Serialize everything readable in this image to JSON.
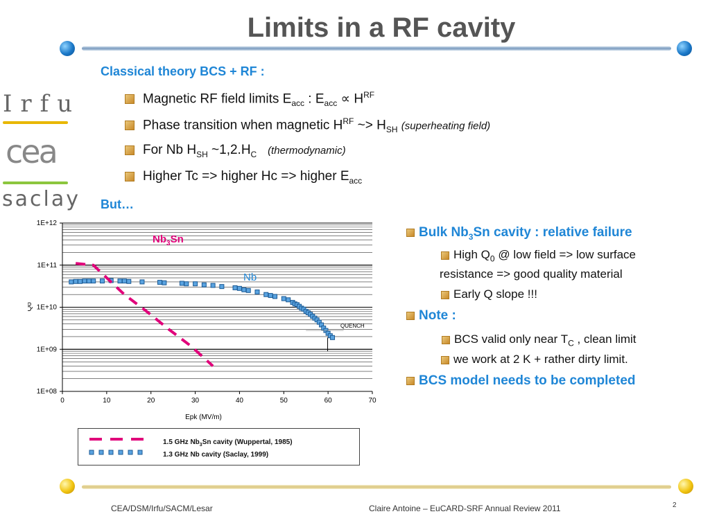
{
  "slide": {
    "title": "Limits in a RF cavity",
    "page_number": "2"
  },
  "logos": {
    "irfu": "Irfu",
    "cea": "cea",
    "saclay": "saclay"
  },
  "left_text": {
    "heading": "Classical theory BCS + RF :",
    "b1": {
      "a": "Magnetic RF field limits E",
      "a_sub": "acc",
      "b": " : E",
      "b_sub": "acc",
      "c": " ∝ H",
      "c_sup": "RF"
    },
    "b2": {
      "a": "Phase transition when magnetic H",
      "a_sup": "RF",
      "b": " ~> H",
      "b_sub": "SH",
      "note": "(superheating field)"
    },
    "b3": {
      "a": "For Nb H",
      "a_sub": "SH",
      "b": " ~1,2.H",
      "b_sub": "C",
      "note": "(thermodynamic)"
    },
    "b4": {
      "a": "Higher Tc => higher Hc => higher E",
      "a_sub": "acc"
    },
    "but": "But…"
  },
  "right_text": {
    "h1": {
      "a": "Bulk Nb",
      "a_sub": "3",
      "b": "Sn cavity : relative failure"
    },
    "s1a": {
      "a": "High Q",
      "a_sub": "0",
      "b": " @ low field => low surface"
    },
    "s1b": "resistance => good quality material",
    "s1c": "Early Q slope !!!",
    "h2": "Note :",
    "s2a": {
      "a": "BCS valid only near T",
      "a_sub": "C",
      "b": " , clean limit"
    },
    "s2b": "we work at 2 K + rather dirty limit.",
    "h3": "BCS model needs to be completed"
  },
  "footer": {
    "left": "CEA/DSM/Irfu/SACM/Lesar",
    "center": "Claire Antoine – EuCARD-SRF Annual Review 2011"
  },
  "colors": {
    "accent_blue": "#1f86d6",
    "nb3sn": "#e0007a",
    "nb_marker": "#5aa3e0"
  },
  "chart_data": {
    "type": "scatter",
    "xlabel": "Epk (MV/m)",
    "ylabel": "Qo",
    "xlim": [
      0,
      70
    ],
    "ylim_log10": [
      8,
      12
    ],
    "y_scale": "log",
    "x_ticks": [
      "0",
      "10",
      "20",
      "30",
      "40",
      "50",
      "60",
      "70"
    ],
    "y_ticks": [
      "1E+08",
      "1E+09",
      "1E+10",
      "1E+11",
      "1E+12"
    ],
    "annotations": {
      "nb3sn": {
        "a": "Nb",
        "a_sub": "3",
        "b": "Sn"
      },
      "nb": "Nb",
      "quench": "QUENCH"
    },
    "legend": {
      "nb3sn": {
        "a": "1.5 GHz Nb",
        "a_sub": "3",
        "b": "Sn cavity (Wuppertal, 1985)"
      },
      "nb": "1.3 GHz Nb cavity (Saclay, 1999)"
    },
    "series": [
      {
        "key": "nb3sn",
        "style": "dashed-line",
        "x": [
          3,
          7,
          10,
          14,
          19,
          24,
          29,
          34
        ],
        "y": [
          110000000000.0,
          100000000000.0,
          50000000000.0,
          20000000000.0,
          8000000000.0,
          3000000000.0,
          1200000000.0,
          400000000.0
        ]
      },
      {
        "key": "nb",
        "style": "square-markers",
        "x": [
          2,
          3,
          4,
          5,
          6,
          7,
          9,
          11,
          13,
          14,
          15,
          18,
          22,
          23,
          27,
          28,
          30,
          32,
          34,
          36,
          39,
          40,
          41,
          42,
          44,
          46,
          47,
          48,
          50,
          51,
          52,
          52.5,
          53,
          53.5,
          54,
          54.5,
          55,
          55.5,
          56,
          56.5,
          57,
          57.5,
          58,
          58.5,
          59,
          59.5,
          60,
          60.5,
          61
        ],
        "y": [
          40000000000.0,
          41000000000.0,
          41000000000.0,
          42000000000.0,
          42000000000.0,
          42000000000.0,
          42000000000.0,
          43000000000.0,
          42000000000.0,
          42000000000.0,
          41000000000.0,
          40000000000.0,
          39000000000.0,
          38000000000.0,
          37000000000.0,
          36000000000.0,
          36000000000.0,
          34000000000.0,
          33000000000.0,
          31000000000.0,
          29000000000.0,
          28000000000.0,
          26000000000.0,
          25000000000.0,
          23000000000.0,
          20000000000.0,
          19000000000.0,
          18000000000.0,
          16000000000.0,
          15000000000.0,
          13000000000.0,
          12000000000.0,
          11500000000.0,
          10500000000.0,
          9500000000.0,
          9000000000.0,
          8000000000.0,
          7400000000.0,
          6800000000.0,
          6100000000.0,
          5500000000.0,
          5000000000.0,
          4400000000.0,
          3800000000.0,
          3200000000.0,
          2800000000.0,
          2400000000.0,
          2100000000.0,
          1900000000.0
        ]
      }
    ]
  }
}
